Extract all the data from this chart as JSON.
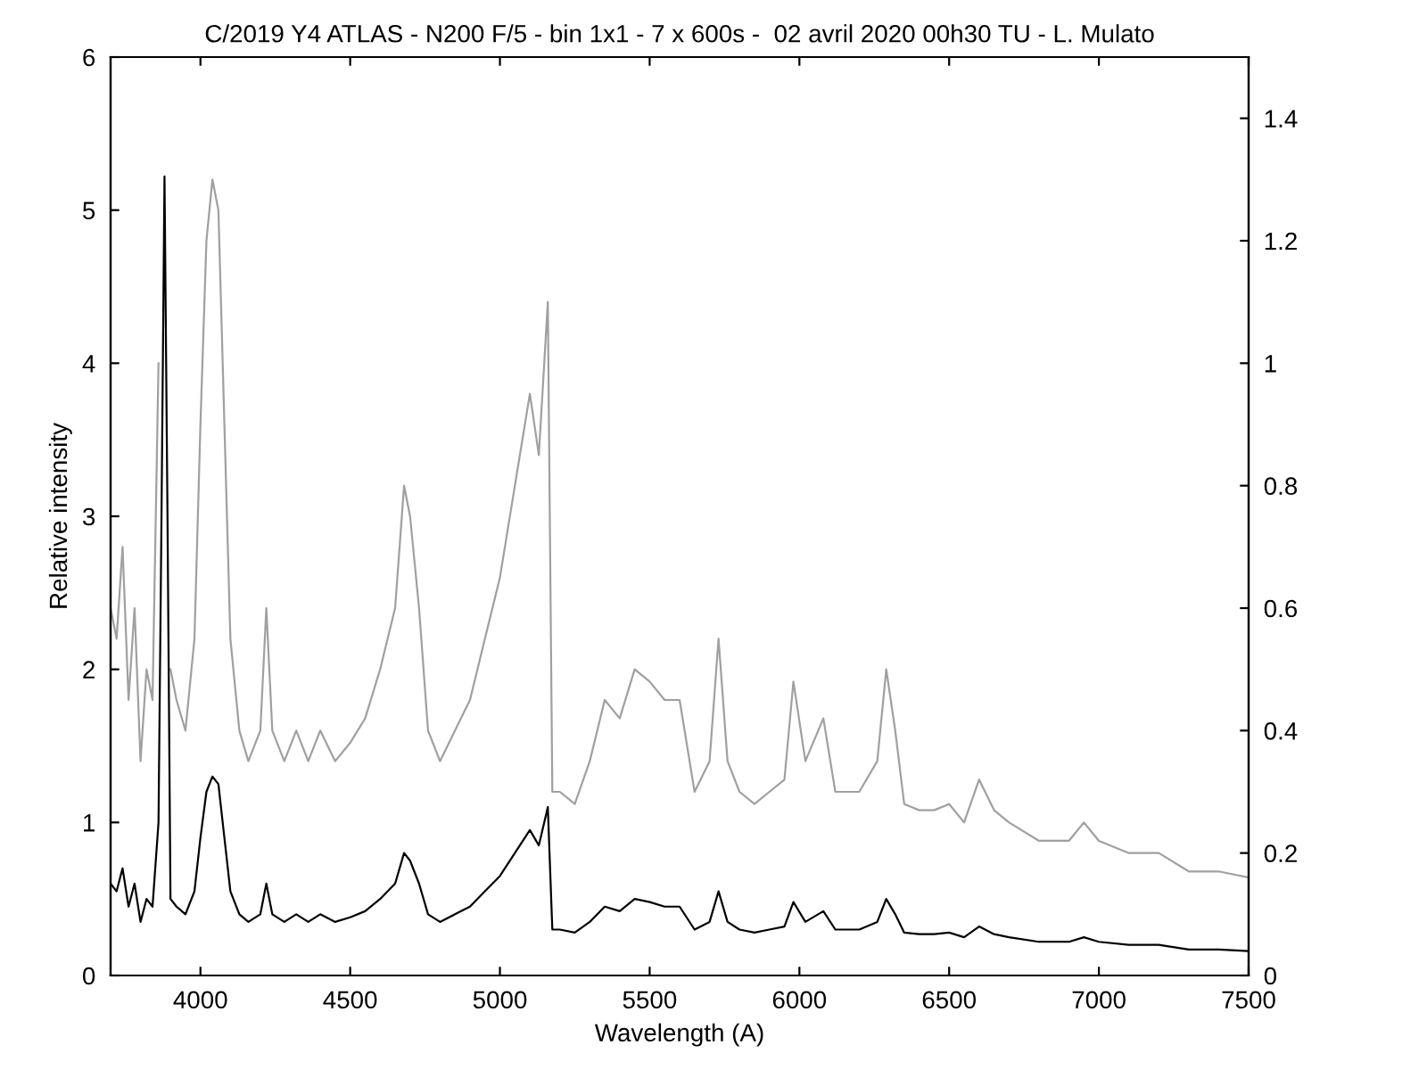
{
  "chart_data": {
    "type": "line",
    "title": "C/2019 Y4 ATLAS - N200 F/5 - bin 1x1 - 7 x 600s -  02 avril 2020 00h30 TU - L. Mulato",
    "xlabel": "Wavelength (A)",
    "ylabel": "Relative intensity",
    "x": [
      3700,
      3720,
      3740,
      3760,
      3780,
      3800,
      3820,
      3840,
      3860,
      3870,
      3880,
      3890,
      3900,
      3920,
      3950,
      3980,
      4000,
      4020,
      4040,
      4060,
      4080,
      4100,
      4130,
      4160,
      4200,
      4220,
      4240,
      4280,
      4320,
      4360,
      4400,
      4450,
      4500,
      4550,
      4600,
      4650,
      4680,
      4700,
      4730,
      4760,
      4800,
      4850,
      4900,
      4950,
      5000,
      5050,
      5100,
      5130,
      5160,
      5175,
      5200,
      5250,
      5300,
      5350,
      5400,
      5450,
      5500,
      5550,
      5600,
      5650,
      5700,
      5730,
      5760,
      5800,
      5850,
      5900,
      5950,
      5980,
      6020,
      6080,
      6120,
      6200,
      6260,
      6290,
      6320,
      6350,
      6400,
      6450,
      6500,
      6550,
      6600,
      6650,
      6700,
      6800,
      6900,
      6950,
      7000,
      7100,
      7200,
      7300,
      7400,
      7500
    ],
    "series": [
      {
        "color": "#a0a0a0",
        "axis": "y2",
        "values": [
          0.6,
          0.55,
          0.7,
          0.45,
          0.6,
          0.35,
          0.5,
          0.45,
          1.0,
          null,
          null,
          null,
          0.5,
          0.45,
          0.4,
          0.55,
          0.9,
          1.2,
          1.3,
          1.25,
          0.9,
          0.55,
          0.4,
          0.35,
          0.4,
          0.6,
          0.4,
          0.35,
          0.4,
          0.35,
          0.4,
          0.35,
          0.38,
          0.42,
          0.5,
          0.6,
          0.8,
          0.75,
          0.6,
          0.4,
          0.35,
          0.4,
          0.45,
          0.55,
          0.65,
          0.8,
          0.95,
          0.85,
          1.1,
          0.3,
          0.3,
          0.28,
          0.35,
          0.45,
          0.42,
          0.5,
          0.48,
          0.45,
          0.45,
          0.3,
          0.35,
          0.55,
          0.35,
          0.3,
          0.28,
          0.3,
          0.32,
          0.48,
          0.35,
          0.42,
          0.3,
          0.3,
          0.35,
          0.5,
          0.4,
          0.28,
          0.27,
          0.27,
          0.28,
          0.25,
          0.32,
          0.27,
          0.25,
          0.22,
          0.22,
          0.25,
          0.22,
          0.2,
          0.2,
          0.17,
          0.17,
          0.16
        ]
      },
      {
        "color": "#000000",
        "values": [
          0.6,
          0.55,
          0.7,
          0.45,
          0.6,
          0.35,
          0.5,
          0.45,
          1.0,
          3.0,
          5.22,
          3.0,
          0.5,
          0.45,
          0.4,
          0.55,
          0.9,
          1.2,
          1.3,
          1.25,
          0.9,
          0.55,
          0.4,
          0.35,
          0.4,
          0.6,
          0.4,
          0.35,
          0.4,
          0.35,
          0.4,
          0.35,
          0.38,
          0.42,
          0.5,
          0.6,
          0.8,
          0.75,
          0.6,
          0.4,
          0.35,
          0.4,
          0.45,
          0.55,
          0.65,
          0.8,
          0.95,
          0.85,
          1.1,
          0.3,
          0.3,
          0.28,
          0.35,
          0.45,
          0.42,
          0.5,
          0.48,
          0.45,
          0.45,
          0.3,
          0.35,
          0.55,
          0.35,
          0.3,
          0.28,
          0.3,
          0.32,
          0.48,
          0.35,
          0.42,
          0.3,
          0.3,
          0.35,
          0.5,
          0.4,
          0.28,
          0.27,
          0.27,
          0.28,
          0.25,
          0.32,
          0.27,
          0.25,
          0.22,
          0.22,
          0.25,
          0.22,
          0.2,
          0.2,
          0.17,
          0.17,
          0.16
        ]
      }
    ],
    "xlim": [
      3700,
      7500
    ],
    "xticks": [
      4000,
      4500,
      5000,
      5500,
      6000,
      6500,
      7000,
      7500
    ],
    "ylim": [
      0,
      6
    ],
    "yticks": [
      0,
      1,
      2,
      3,
      4,
      5,
      6
    ],
    "y2lim": [
      0,
      1.5
    ],
    "y2ticks": [
      0,
      0.2,
      0.4,
      0.6,
      0.8,
      1,
      1.2,
      1.4
    ]
  }
}
